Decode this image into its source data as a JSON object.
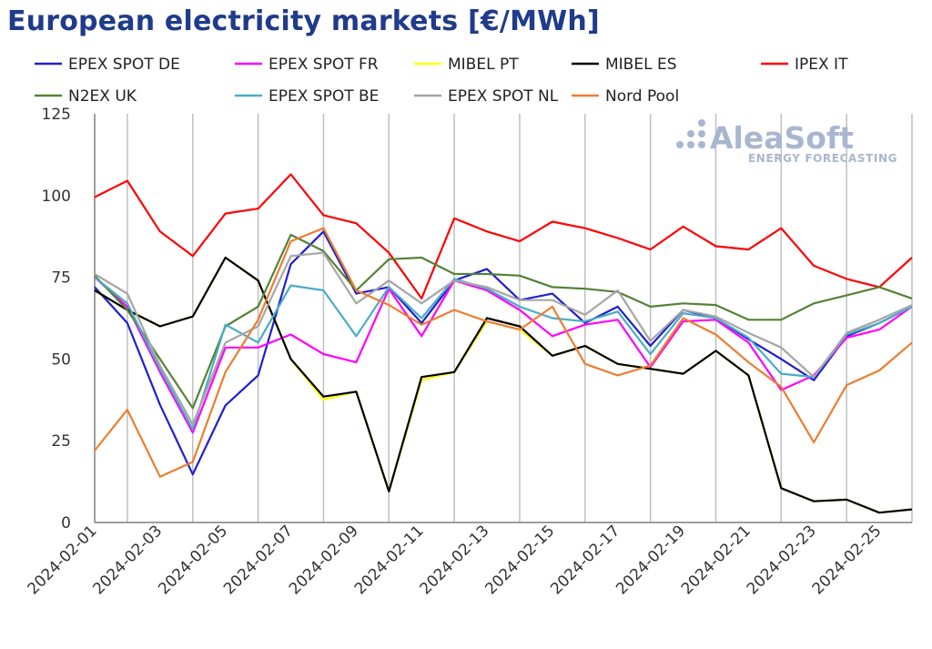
{
  "chart_data": {
    "type": "line",
    "title": "European electricity markets [€/MWh]",
    "xlabel": "",
    "ylabel": "",
    "ylim": [
      0,
      125
    ],
    "yticks": [
      0,
      25,
      50,
      75,
      100,
      125
    ],
    "grid": "vertical",
    "legend_position": "top",
    "x": [
      "2024-02-01",
      "2024-02-02",
      "2024-02-03",
      "2024-02-04",
      "2024-02-05",
      "2024-02-06",
      "2024-02-07",
      "2024-02-08",
      "2024-02-09",
      "2024-02-10",
      "2024-02-11",
      "2024-02-12",
      "2024-02-13",
      "2024-02-14",
      "2024-02-15",
      "2024-02-16",
      "2024-02-17",
      "2024-02-18",
      "2024-02-19",
      "2024-02-20",
      "2024-02-21",
      "2024-02-22",
      "2024-02-23",
      "2024-02-24",
      "2024-02-25",
      "2024-02-26"
    ],
    "xtick_labels": [
      "2024-02-01",
      "2024-02-03",
      "2024-02-05",
      "2024-02-07",
      "2024-02-09",
      "2024-02-11",
      "2024-02-13",
      "2024-02-15",
      "2024-02-17",
      "2024-02-19",
      "2024-02-21",
      "2024-02-23",
      "2024-02-25"
    ],
    "series": [
      {
        "name": "EPEX SPOT DE",
        "color": "#1f1fd1",
        "values": [
          72.0,
          61.0,
          36.0,
          14.7,
          35.8,
          45.0,
          79.0,
          89.0,
          70.0,
          72.0,
          61.0,
          74.0,
          77.5,
          68.0,
          70.0,
          61.0,
          66.0,
          54.0,
          65.0,
          62.5,
          56.0,
          50.0,
          43.5,
          57.0,
          61.0,
          66.0
        ]
      },
      {
        "name": "EPEX SPOT FR",
        "color": "#ff00ff",
        "values": [
          75.0,
          66.0,
          46.0,
          27.5,
          53.5,
          53.5,
          57.5,
          51.5,
          49.0,
          71.5,
          57.0,
          74.0,
          71.0,
          65.0,
          57.0,
          60.5,
          62.0,
          47.5,
          61.5,
          62.0,
          55.0,
          40.5,
          45.0,
          56.5,
          59.0,
          66.0
        ]
      },
      {
        "name": "MIBEL PT",
        "color": "#ffff00",
        "values": [
          71.0,
          65.0,
          60.0,
          63.0,
          81.0,
          74.0,
          50.0,
          37.5,
          40.0,
          9.5,
          43.5,
          46.0,
          61.5,
          59.0,
          51.0,
          54.0,
          48.5,
          47.0,
          45.5,
          52.5,
          45.0,
          10.5,
          6.5,
          7.0,
          3.0,
          4.0
        ]
      },
      {
        "name": "MIBEL ES",
        "color": "#000000",
        "values": [
          71.0,
          65.0,
          60.0,
          63.0,
          81.0,
          74.0,
          50.0,
          38.5,
          40.0,
          9.5,
          44.5,
          46.0,
          62.5,
          60.0,
          51.0,
          54.0,
          48.5,
          47.0,
          45.5,
          52.5,
          45.0,
          10.5,
          6.5,
          7.0,
          3.0,
          4.0
        ]
      },
      {
        "name": "IPEX IT",
        "color": "#ff0000",
        "values": [
          99.5,
          104.5,
          89.0,
          81.5,
          94.5,
          96.0,
          106.5,
          94.0,
          91.5,
          82.5,
          68.5,
          93.0,
          89.0,
          86.0,
          92.0,
          90.0,
          87.0,
          83.5,
          90.5,
          84.5,
          83.5,
          90.0,
          78.5,
          74.5,
          72.0,
          81.0
        ]
      },
      {
        "name": "N2EX UK",
        "color": "#548235",
        "values": [
          75.5,
          65.0,
          50.0,
          35.0,
          60.0,
          66.0,
          88.0,
          83.0,
          71.0,
          80.5,
          81.0,
          76.0,
          76.0,
          75.5,
          72.0,
          71.5,
          70.5,
          66.0,
          67.0,
          66.5,
          62.0,
          62.0,
          67.0,
          69.5,
          72.0,
          68.5
        ]
      },
      {
        "name": "EPEX SPOT BE",
        "color": "#4bacc6",
        "values": [
          75.0,
          67.0,
          47.0,
          28.5,
          60.5,
          55.0,
          72.5,
          71.0,
          57.0,
          72.0,
          62.5,
          74.5,
          71.5,
          66.0,
          62.5,
          61.5,
          64.5,
          51.5,
          64.0,
          62.5,
          56.5,
          45.5,
          44.5,
          57.5,
          61.0,
          66.0
        ]
      },
      {
        "name": "EPEX SPOT NL",
        "color": "#a6a6a6",
        "values": [
          76.0,
          70.0,
          48.0,
          30.0,
          55.0,
          60.0,
          81.5,
          82.5,
          67.0,
          74.0,
          67.0,
          74.0,
          72.0,
          68.0,
          68.0,
          63.5,
          71.0,
          55.5,
          65.0,
          63.0,
          58.0,
          53.5,
          44.5,
          58.0,
          62.0,
          66.5
        ]
      },
      {
        "name": "Nord Pool",
        "color": "#ed7d31",
        "values": [
          22.0,
          34.5,
          14.0,
          18.5,
          46.0,
          62.0,
          86.0,
          90.0,
          71.0,
          66.5,
          60.5,
          65.0,
          61.5,
          59.0,
          66.0,
          48.5,
          45.0,
          48.0,
          62.5,
          57.5,
          49.0,
          41.5,
          24.5,
          42.0,
          46.5,
          55.0
        ]
      }
    ]
  },
  "logo": {
    "name": "AleaSoft",
    "tagline": "ENERGY FORECASTING"
  }
}
